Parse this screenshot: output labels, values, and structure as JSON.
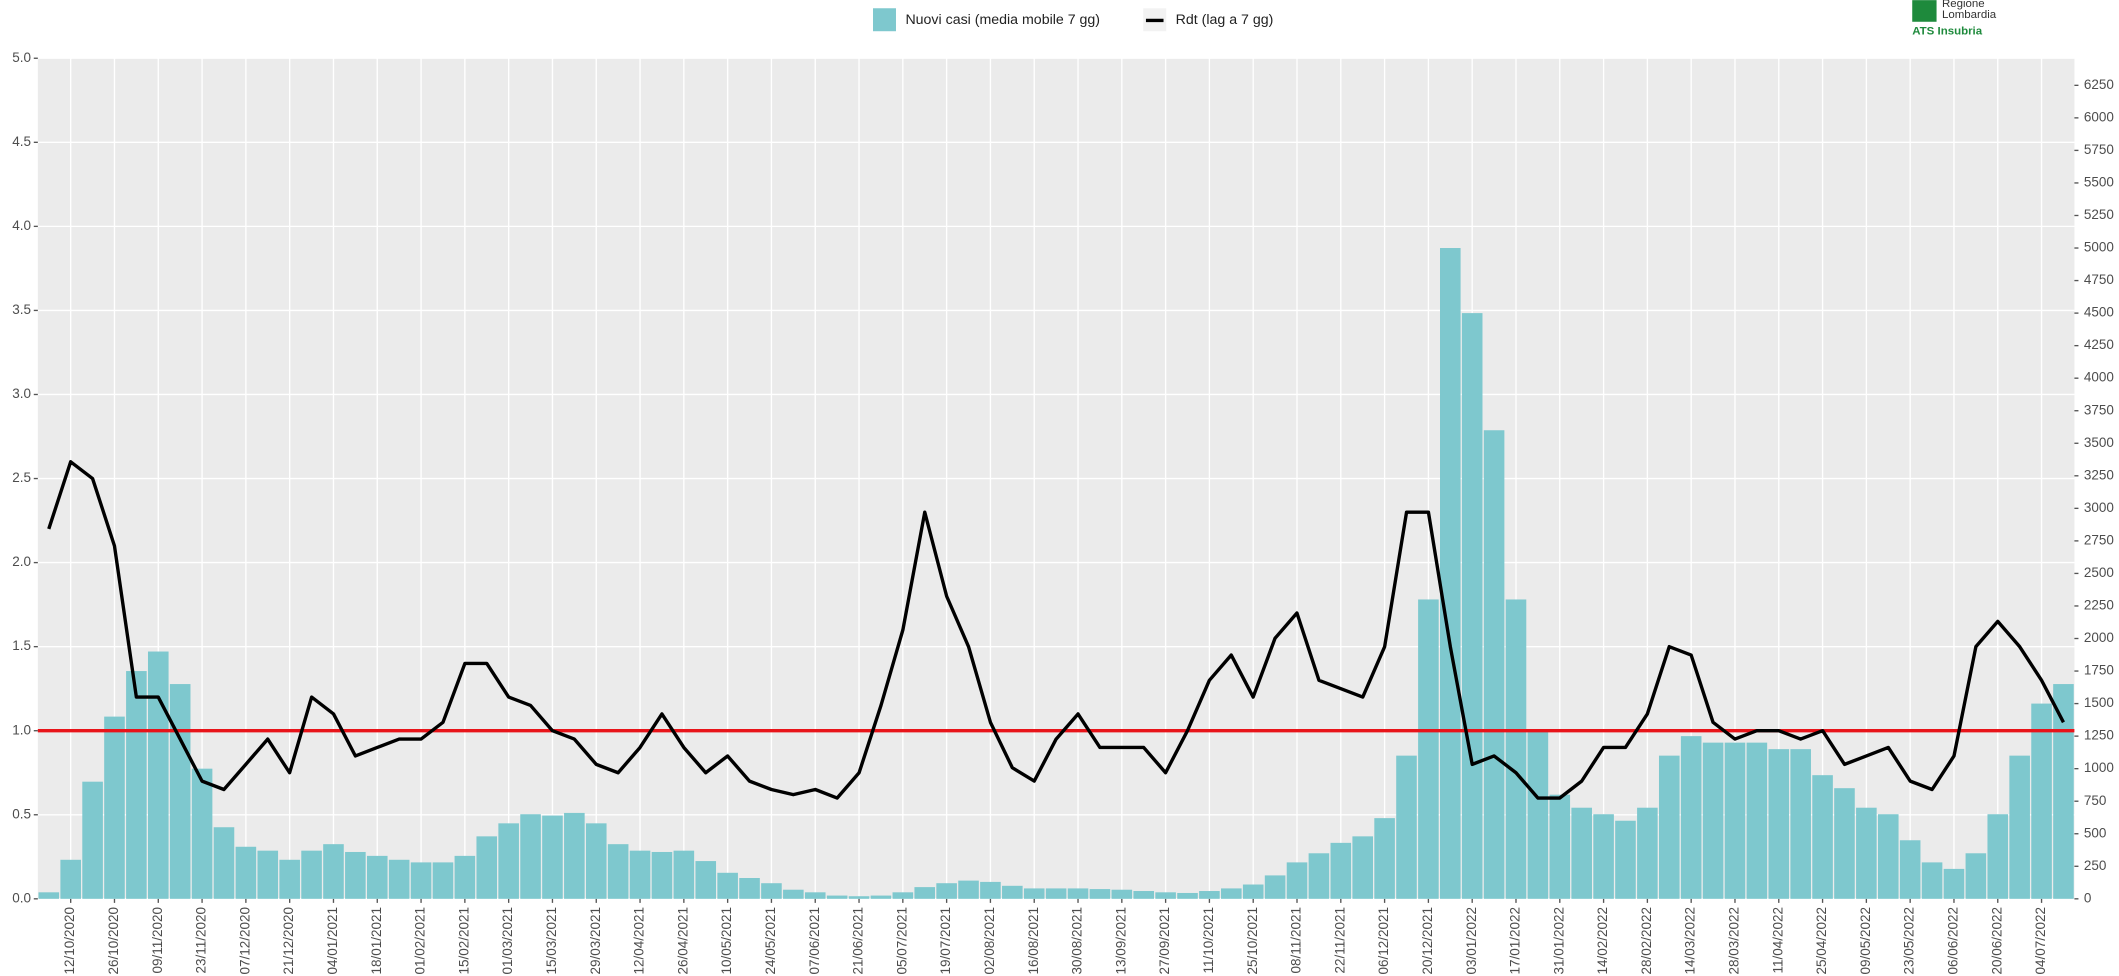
{
  "chart_data": {
    "type": "bar",
    "legend": "top",
    "grid": true,
    "categories": [
      null,
      "12/10/2020",
      null,
      "26/10/2020",
      null,
      "09/11/2020",
      null,
      "23/11/2020",
      null,
      "07/12/2020",
      null,
      "21/12/2020",
      null,
      "04/01/2021",
      null,
      "18/01/2021",
      null,
      "01/02/2021",
      null,
      "15/02/2021",
      null,
      "01/03/2021",
      null,
      "15/03/2021",
      null,
      "29/03/2021",
      null,
      "12/04/2021",
      null,
      "26/04/2021",
      null,
      "10/05/2021",
      null,
      "24/05/2021",
      null,
      "07/06/2021",
      null,
      "21/06/2021",
      null,
      "05/07/2021",
      null,
      "19/07/2021",
      null,
      "02/08/2021",
      null,
      "16/08/2021",
      null,
      "30/08/2021",
      null,
      "13/09/2021",
      null,
      "27/09/2021",
      null,
      "11/10/2021",
      null,
      "25/10/2021",
      null,
      "08/11/2021",
      null,
      "22/11/2021",
      null,
      "06/12/2021",
      null,
      "20/12/2021",
      null,
      "03/01/2022",
      null,
      "17/01/2022",
      null,
      "31/01/2022",
      null,
      "14/02/2022",
      null,
      "28/02/2022",
      null,
      "14/03/2022",
      null,
      "28/03/2022",
      null,
      "11/04/2022",
      null,
      "25/04/2022",
      null,
      "09/05/2022",
      null,
      "23/05/2022",
      null,
      "06/06/2022",
      null,
      "20/06/2022",
      null,
      "04/07/2022",
      null
    ],
    "series": [
      {
        "name": "Nuovi casi (media mobile 7 gg)",
        "type": "bar",
        "axis": "y2",
        "color": "#7ec8ce",
        "values": [
          50,
          300,
          900,
          1400,
          1750,
          1900,
          1650,
          1000,
          550,
          400,
          370,
          300,
          370,
          420,
          360,
          330,
          300,
          280,
          280,
          330,
          480,
          580,
          650,
          640,
          660,
          580,
          420,
          370,
          360,
          370,
          290,
          200,
          160,
          120,
          70,
          50,
          25,
          20,
          25,
          50,
          90,
          120,
          140,
          130,
          100,
          80,
          80,
          80,
          75,
          70,
          60,
          50,
          45,
          60,
          80,
          110,
          180,
          280,
          350,
          430,
          480,
          620,
          1100,
          2300,
          5000,
          4500,
          3600,
          2300,
          1300,
          800,
          700,
          650,
          600,
          700,
          1100,
          1250,
          1200,
          1200,
          1200,
          1150,
          1150,
          950,
          850,
          700,
          650,
          450,
          280,
          230,
          350,
          650,
          1100,
          1500,
          1650
        ]
      },
      {
        "name": "Rdt (lag a 7 gg)",
        "type": "line",
        "color": "#000000",
        "values": [
          2.2,
          2.6,
          2.5,
          2.1,
          1.2,
          1.2,
          0.95,
          0.7,
          0.65,
          0.8,
          0.95,
          0.75,
          1.2,
          1.1,
          0.85,
          0.9,
          0.95,
          0.95,
          1.05,
          1.4,
          1.4,
          1.2,
          1.15,
          1.0,
          0.95,
          0.8,
          0.75,
          0.9,
          1.1,
          0.9,
          0.75,
          0.85,
          0.7,
          0.65,
          0.62,
          0.65,
          0.6,
          0.75,
          1.15,
          1.6,
          2.3,
          1.8,
          1.5,
          1.05,
          0.78,
          0.7,
          0.95,
          1.1,
          0.9,
          0.9,
          0.9,
          0.75,
          1.0,
          1.3,
          1.45,
          1.2,
          1.55,
          1.7,
          1.3,
          1.25,
          1.2,
          1.5,
          2.3,
          2.3,
          1.5,
          0.8,
          0.85,
          0.75,
          0.6,
          0.6,
          0.7,
          0.9,
          0.9,
          1.1,
          1.5,
          1.45,
          1.05,
          0.95,
          1.0,
          1.0,
          0.95,
          1.0,
          0.8,
          0.85,
          0.9,
          0.7,
          0.65,
          0.85,
          1.5,
          1.65,
          1.5,
          1.3,
          1.05
        ]
      }
    ],
    "hline": {
      "value": 1,
      "color": "#e8141a"
    },
    "ylim": [
      0,
      5
    ],
    "yticks": [
      {
        "value": 0,
        "label": "0.0"
      },
      0.5,
      {
        "value": 1,
        "label": "1.0"
      },
      1.5,
      {
        "value": 2,
        "label": "2.0"
      },
      2.5,
      {
        "value": 3,
        "label": "3.0"
      },
      3.5,
      {
        "value": 4,
        "label": "4.0"
      },
      4.5,
      {
        "value": 5,
        "label": "5.0"
      }
    ],
    "y2lim": [
      0,
      6458
    ],
    "y2ticks": [
      0,
      250,
      500,
      750,
      1000,
      1250,
      1500,
      1750,
      2000,
      2250,
      2500,
      2750,
      3000,
      3250,
      3500,
      3750,
      4000,
      4250,
      4500,
      4750,
      5000,
      5250,
      5500,
      5750,
      6000,
      6250
    ]
  },
  "logo": {
    "lines": [
      "Regione",
      "Lombardia"
    ],
    "subtitle": "ATS Insubria"
  }
}
